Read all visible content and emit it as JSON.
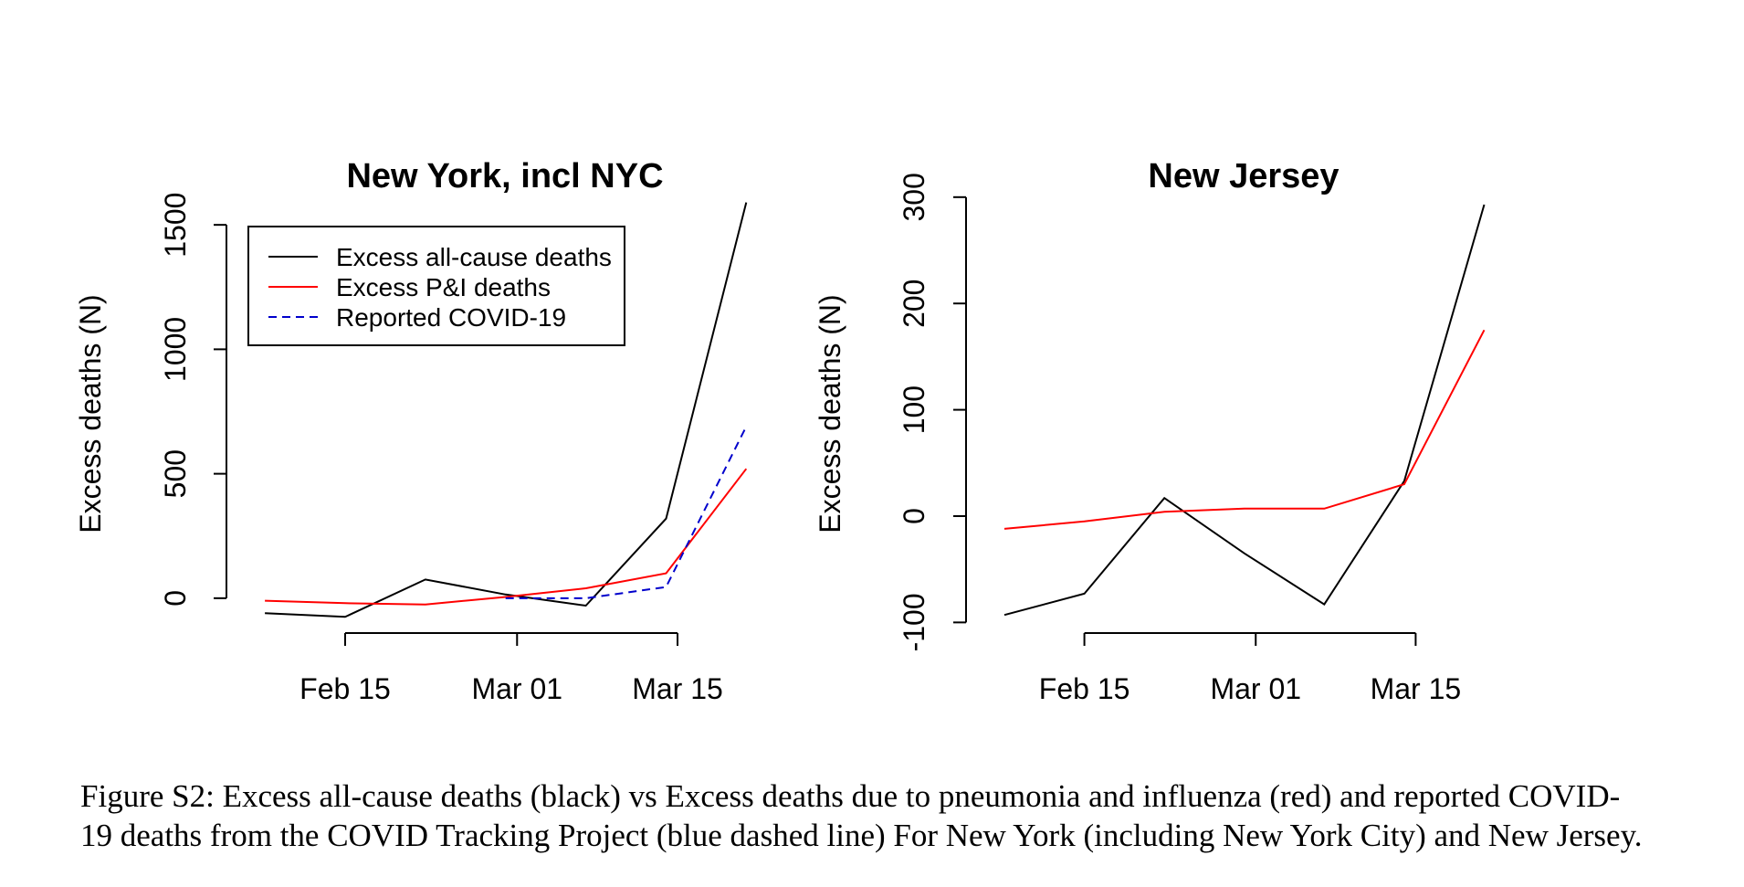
{
  "figure": {
    "caption": "Figure S2: Excess all-cause deaths (black) vs Excess deaths due to pneumonia and influenza (red) and reported COVID-19 deaths from the COVID Tracking Project (blue dashed line) For New York (including New York City) and New Jersey.",
    "colors": {
      "all_cause": "#000000",
      "pi": "#ff0000",
      "covid": "#0000cc"
    }
  },
  "chart_data": [
    {
      "type": "line",
      "title": "New York, incl NYC",
      "xlabel": "",
      "ylabel": "Excess deaths (N)",
      "x": [
        "2020-02-08",
        "2020-02-15",
        "2020-02-22",
        "2020-02-29",
        "2020-03-07",
        "2020-03-14",
        "2020-03-21"
      ],
      "x_ticks": [
        {
          "date": "2020-02-15",
          "label": "Feb 15"
        },
        {
          "date": "2020-03-01",
          "label": "Mar 01"
        },
        {
          "date": "2020-03-15",
          "label": "Mar 15"
        }
      ],
      "y_ticks": [
        0,
        500,
        1000,
        1500
      ],
      "ylim": [
        -140,
        1640
      ],
      "legend": {
        "placement": "top-left",
        "entries": [
          "Excess all-cause deaths",
          "Excess P&I deaths",
          "Reported COVID-19"
        ]
      },
      "series": [
        {
          "name": "Excess all-cause deaths",
          "color": "#000000",
          "dash": false,
          "x": [
            "2020-02-08",
            "2020-02-15",
            "2020-02-22",
            "2020-02-29",
            "2020-03-07",
            "2020-03-14",
            "2020-03-21"
          ],
          "values": [
            -60,
            -75,
            75,
            15,
            -30,
            320,
            1590
          ]
        },
        {
          "name": "Excess P&I deaths",
          "color": "#ff0000",
          "dash": false,
          "x": [
            "2020-02-08",
            "2020-02-15",
            "2020-02-22",
            "2020-02-29",
            "2020-03-07",
            "2020-03-14",
            "2020-03-21"
          ],
          "values": [
            -10,
            -20,
            -25,
            5,
            40,
            100,
            520
          ]
        },
        {
          "name": "Reported COVID-19",
          "color": "#0000cc",
          "dash": true,
          "x": [
            "2020-02-29",
            "2020-03-07",
            "2020-03-14",
            "2020-03-21"
          ],
          "values": [
            0,
            0,
            45,
            690
          ]
        }
      ]
    },
    {
      "type": "line",
      "title": "New Jersey",
      "xlabel": "",
      "ylabel": "Excess deaths (N)",
      "x": [
        "2020-02-08",
        "2020-02-15",
        "2020-02-22",
        "2020-02-29",
        "2020-03-07",
        "2020-03-14",
        "2020-03-21"
      ],
      "x_ticks": [
        {
          "date": "2020-02-15",
          "label": "Feb 15"
        },
        {
          "date": "2020-03-01",
          "label": "Mar 01"
        },
        {
          "date": "2020-03-15",
          "label": "Mar 15"
        }
      ],
      "y_ticks": [
        -100,
        0,
        100,
        200,
        300
      ],
      "ylim": [
        -110,
        305
      ],
      "series": [
        {
          "name": "Excess all-cause deaths",
          "color": "#000000",
          "dash": false,
          "x": [
            "2020-02-08",
            "2020-02-15",
            "2020-02-22",
            "2020-02-29",
            "2020-03-07",
            "2020-03-14",
            "2020-03-21"
          ],
          "values": [
            -93,
            -73,
            17,
            -35,
            -83,
            33,
            293
          ]
        },
        {
          "name": "Excess P&I deaths",
          "color": "#ff0000",
          "dash": false,
          "x": [
            "2020-02-08",
            "2020-02-15",
            "2020-02-22",
            "2020-02-29",
            "2020-03-07",
            "2020-03-14",
            "2020-03-21"
          ],
          "values": [
            -12,
            -5,
            4,
            7,
            7,
            30,
            175
          ]
        }
      ]
    }
  ]
}
